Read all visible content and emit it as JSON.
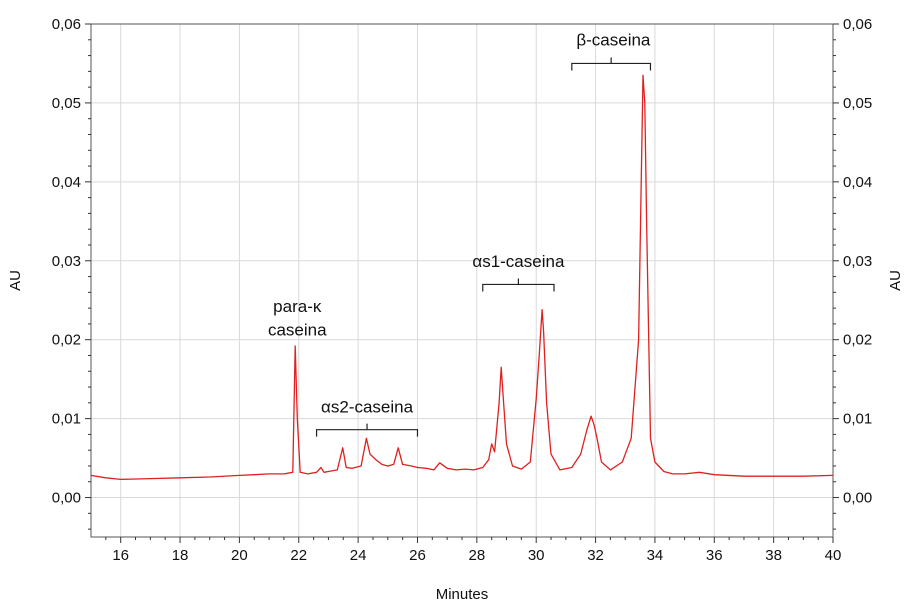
{
  "chart_data": {
    "type": "line",
    "title": "",
    "xlabel": "Minutes",
    "ylabel_left": "AU",
    "ylabel_right": "AU",
    "xlim": [
      15,
      40
    ],
    "ylim": [
      -0.005,
      0.06
    ],
    "grid": true,
    "x_ticks": [
      16,
      18,
      20,
      22,
      24,
      26,
      28,
      30,
      32,
      34,
      36,
      38,
      40
    ],
    "x_tick_labels": [
      "16",
      "18",
      "20",
      "22",
      "24",
      "26",
      "28",
      "30",
      "32",
      "34",
      "36",
      "38",
      "40"
    ],
    "y_ticks": [
      0.0,
      0.01,
      0.02,
      0.03,
      0.04,
      0.05,
      0.06
    ],
    "y_tick_labels": [
      "0,00",
      "0,01",
      "0,02",
      "0,03",
      "0,04",
      "0,05",
      "0,06"
    ],
    "series": [
      {
        "color": "#e02020",
        "x": [
          15.0,
          15.5,
          16.0,
          17.0,
          18.0,
          19.0,
          20.0,
          20.5,
          21.0,
          21.5,
          21.8,
          21.88,
          21.95,
          22.05,
          22.3,
          22.6,
          22.75,
          22.85,
          23.0,
          23.3,
          23.48,
          23.6,
          23.8,
          24.1,
          24.28,
          24.4,
          24.6,
          24.8,
          25.0,
          25.2,
          25.35,
          25.5,
          25.8,
          26.0,
          26.3,
          26.55,
          26.75,
          27.0,
          27.3,
          27.6,
          27.9,
          28.2,
          28.4,
          28.5,
          28.6,
          28.75,
          28.82,
          28.9,
          29.0,
          29.2,
          29.5,
          29.8,
          30.0,
          30.1,
          30.2,
          30.25,
          30.35,
          30.5,
          30.8,
          31.2,
          31.5,
          31.7,
          31.85,
          31.95,
          32.05,
          32.2,
          32.5,
          32.9,
          33.2,
          33.45,
          33.6,
          33.66,
          33.72,
          33.85,
          34.0,
          34.3,
          34.6,
          35.0,
          35.5,
          36.0,
          37.0,
          38.0,
          39.0,
          40.0
        ],
        "values": [
          0.0028,
          0.0025,
          0.0023,
          0.0024,
          0.0025,
          0.0026,
          0.0028,
          0.0029,
          0.003,
          0.003,
          0.0032,
          0.0192,
          0.01,
          0.0032,
          0.003,
          0.0032,
          0.0038,
          0.0032,
          0.0033,
          0.0035,
          0.0063,
          0.0038,
          0.0037,
          0.004,
          0.0075,
          0.0055,
          0.0048,
          0.0042,
          0.004,
          0.0042,
          0.0063,
          0.0042,
          0.004,
          0.0038,
          0.0037,
          0.0035,
          0.0044,
          0.0037,
          0.0035,
          0.0036,
          0.0035,
          0.0038,
          0.0048,
          0.0068,
          0.0058,
          0.012,
          0.0165,
          0.012,
          0.0068,
          0.004,
          0.0036,
          0.0045,
          0.0125,
          0.018,
          0.0238,
          0.021,
          0.012,
          0.0055,
          0.0035,
          0.0038,
          0.0055,
          0.0085,
          0.0103,
          0.0092,
          0.0075,
          0.0045,
          0.0035,
          0.0045,
          0.0075,
          0.02,
          0.0535,
          0.05,
          0.035,
          0.0075,
          0.0045,
          0.0033,
          0.003,
          0.003,
          0.0032,
          0.0029,
          0.0027,
          0.0027,
          0.0027,
          0.0028
        ]
      }
    ],
    "annotations": [
      {
        "text": "para-κ",
        "x": 21.95,
        "y": 0.0235,
        "line": 0
      },
      {
        "text": "caseina",
        "x": 21.95,
        "y": 0.0205,
        "line": 1
      },
      {
        "text": "αs2-caseina",
        "x": 24.3,
        "y": 0.0108,
        "bracket": [
          22.6,
          26.0
        ],
        "bracket_y": 0.0086
      },
      {
        "text": "αs1-caseina",
        "x": 29.4,
        "y": 0.0292,
        "bracket": [
          28.2,
          30.6
        ],
        "bracket_y": 0.027
      },
      {
        "text": "β-caseina",
        "x": 32.6,
        "y": 0.0573,
        "bracket": [
          31.2,
          33.85
        ],
        "bracket_y": 0.055
      }
    ]
  }
}
